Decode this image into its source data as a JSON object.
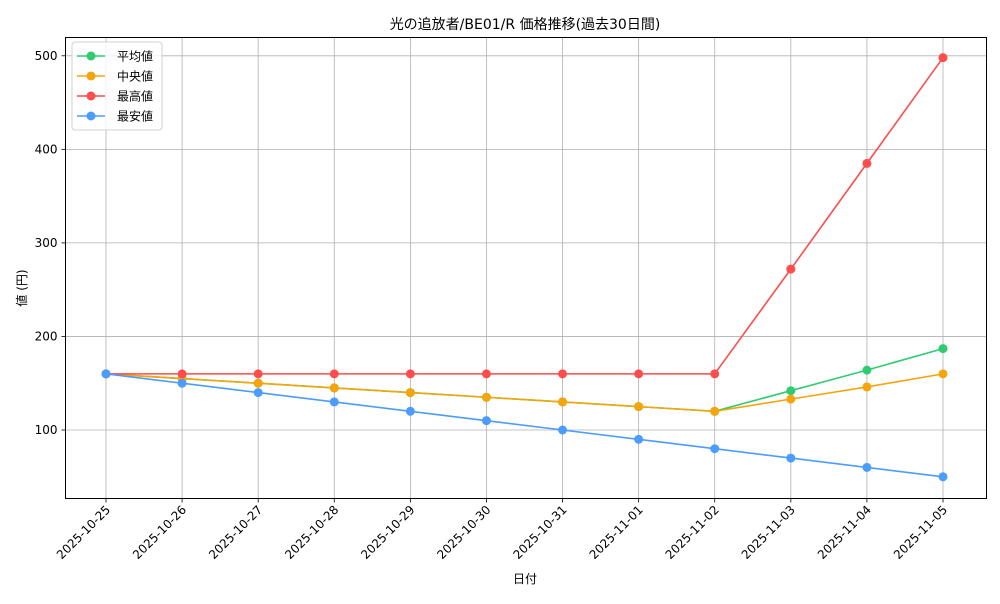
{
  "chart_data": {
    "type": "line",
    "title": "光の追放者/BE01/R 価格推移(過去30日間)",
    "xlabel": "日付",
    "ylabel": "値 (円)",
    "categories": [
      "2025-10-25",
      "2025-10-26",
      "2025-10-27",
      "2025-10-28",
      "2025-10-29",
      "2025-10-30",
      "2025-10-31",
      "2025-11-01",
      "2025-11-02",
      "2025-11-03",
      "2025-11-04",
      "2025-11-05"
    ],
    "series": [
      {
        "name": "平均値",
        "color": "#2ecc71",
        "values": [
          160,
          155,
          150,
          145,
          140,
          135,
          130,
          125,
          120,
          142,
          164,
          187
        ]
      },
      {
        "name": "中央値",
        "color": "#f5a50a",
        "values": [
          160,
          155,
          150,
          145,
          140,
          135,
          130,
          125,
          120,
          133,
          146,
          160
        ]
      },
      {
        "name": "最高値",
        "color": "#ff4c4c",
        "values": [
          160,
          160,
          160,
          160,
          160,
          160,
          160,
          160,
          160,
          272,
          385,
          498
        ]
      },
      {
        "name": "最安値",
        "color": "#4c9cff",
        "values": [
          160,
          150,
          140,
          130,
          120,
          110,
          100,
          90,
          80,
          70,
          60,
          50
        ]
      }
    ],
    "yticks": [
      100,
      200,
      300,
      400,
      500
    ],
    "ylim": [
      25,
      523
    ],
    "grid": true,
    "legend_position": "upper left",
    "x_tick_rotation": 45
  }
}
